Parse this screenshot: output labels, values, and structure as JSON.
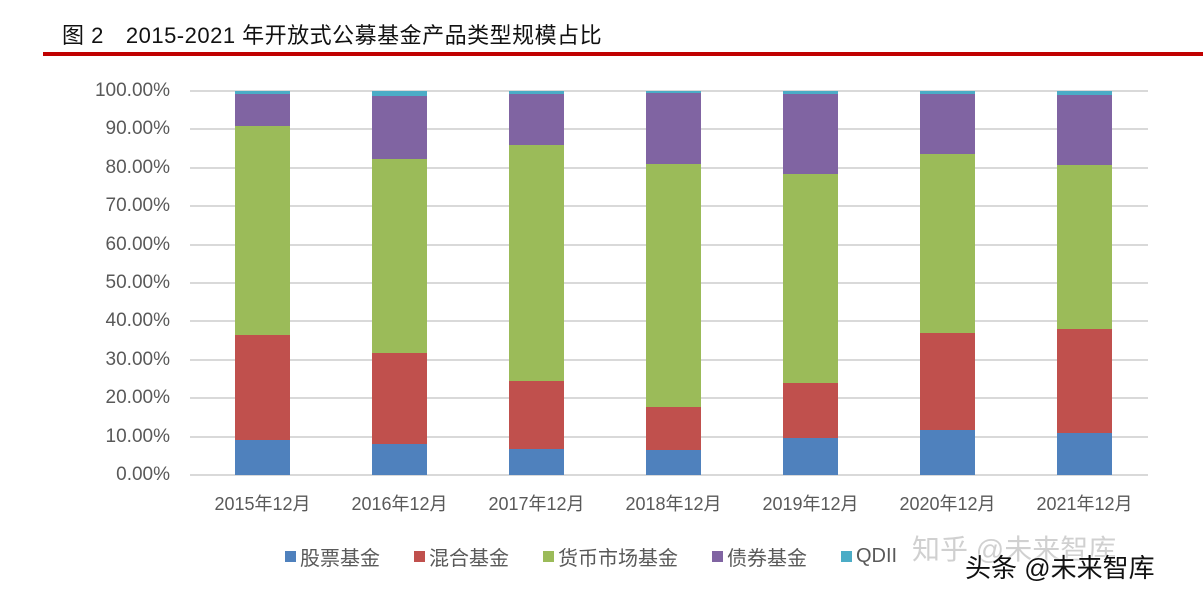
{
  "header": {
    "figure_label": "图 2",
    "title": "2015-2021 年开放式公募基金产品类型规模占比"
  },
  "colors": {
    "rule": "#c00000",
    "stock": "#4f81bd",
    "mixed": "#c0504d",
    "money": "#9bbb59",
    "bond": "#8064a2",
    "qdii": "#4bacc6"
  },
  "y_ticks": [
    "100.00%",
    "90.00%",
    "80.00%",
    "70.00%",
    "60.00%",
    "50.00%",
    "40.00%",
    "30.00%",
    "20.00%",
    "10.00%",
    "0.00%"
  ],
  "x_labels": [
    "2015年12月",
    "2016年12月",
    "2017年12月",
    "2018年12月",
    "2019年12月",
    "2020年12月",
    "2021年12月"
  ],
  "legend": [
    {
      "label": "股票基金",
      "color": "#4f81bd"
    },
    {
      "label": "混合基金",
      "color": "#c0504d"
    },
    {
      "label": "货币市场基金",
      "color": "#9bbb59"
    },
    {
      "label": "债券基金",
      "color": "#8064a2"
    },
    {
      "label": "QDII",
      "color": "#4bacc6"
    }
  ],
  "watermarks": {
    "zhihu": "知乎 @未来智库",
    "toutiao": "头条 @未来智库"
  },
  "chart_data": {
    "type": "bar",
    "stacked": true,
    "title": "2015-2021 年开放式公募基金产品类型规模占比",
    "xlabel": "",
    "ylabel": "",
    "ylim": [
      0,
      100
    ],
    "y_format": "percent",
    "grid": true,
    "legend_position": "bottom",
    "categories": [
      "2015年12月",
      "2016年12月",
      "2017年12月",
      "2018年12月",
      "2019年12月",
      "2020年12月",
      "2021年12月"
    ],
    "series": [
      {
        "name": "股票基金",
        "values": [
          9.1,
          8.0,
          6.7,
          6.4,
          9.6,
          11.7,
          11.0
        ]
      },
      {
        "name": "混合基金",
        "values": [
          27.4,
          23.7,
          17.7,
          11.3,
          14.3,
          25.2,
          27.1
        ]
      },
      {
        "name": "货币市场基金",
        "values": [
          54.4,
          50.5,
          61.5,
          63.2,
          54.4,
          46.7,
          42.6
        ]
      },
      {
        "name": "债券基金",
        "values": [
          8.3,
          16.6,
          13.3,
          18.7,
          20.9,
          15.6,
          18.2
        ]
      },
      {
        "name": "QDII",
        "values": [
          0.8,
          1.2,
          0.8,
          0.4,
          0.8,
          0.8,
          1.1
        ]
      }
    ]
  }
}
